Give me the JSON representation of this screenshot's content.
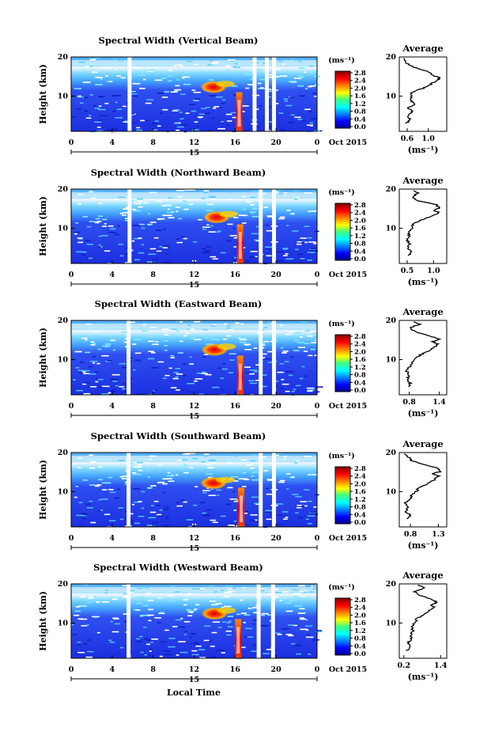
{
  "chart_data": [
    {
      "type": "heatmap",
      "title": "Spectral Width (Vertical Beam)",
      "ylabel": "Height (km)",
      "x_ticks": [
        "0",
        "4",
        "8",
        "12",
        "16",
        "20",
        "0"
      ],
      "xlim": [
        0,
        24
      ],
      "ylim": [
        1,
        20
      ],
      "y_ticks": [
        "20",
        "10"
      ],
      "date_marker": "15",
      "date_label": "Oct 2015",
      "colorbar": {
        "unit": "(ms⁻¹)",
        "ticks": [
          "2.8",
          "2.4",
          "2.0",
          "1.6",
          "1.2",
          "0.8",
          "0.4",
          "0.0"
        ]
      },
      "features": {
        "layer_top": 17.5,
        "hotspot": {
          "time": 13.9,
          "height": 12.3
        },
        "convection": {
          "time": 16.4
        },
        "gaps": [
          5.7,
          17.9,
          19.1,
          19.8
        ]
      },
      "profile": {
        "title": "Average",
        "xlabel": "(ms⁻¹)",
        "x_ticks": [
          "0.6",
          "1.0"
        ],
        "y_ticks": [
          "20",
          "10"
        ],
        "xlim": [
          0.45,
          1.35
        ],
        "points": [
          [
            0.58,
            3
          ],
          [
            0.65,
            4
          ],
          [
            0.6,
            5
          ],
          [
            0.7,
            6
          ],
          [
            0.62,
            7
          ],
          [
            0.75,
            8
          ],
          [
            0.66,
            9
          ],
          [
            0.7,
            10
          ],
          [
            0.68,
            11
          ],
          [
            0.9,
            12
          ],
          [
            1.05,
            13
          ],
          [
            1.15,
            14
          ],
          [
            1.22,
            14.6
          ],
          [
            1.1,
            15.2
          ],
          [
            1.05,
            16
          ],
          [
            0.8,
            17
          ],
          [
            0.62,
            18
          ],
          [
            0.56,
            19
          ],
          [
            0.5,
            19.8
          ]
        ]
      }
    },
    {
      "type": "heatmap",
      "title": "Spectral Width (Northward Beam)",
      "ylabel": "Height (km)",
      "x_ticks": [
        "0",
        "4",
        "8",
        "12",
        "16",
        "20",
        "0"
      ],
      "xlim": [
        0,
        24
      ],
      "ylim": [
        1,
        20
      ],
      "y_ticks": [
        "20",
        "10"
      ],
      "date_marker": "15",
      "date_label": "Oct 2015",
      "colorbar": {
        "unit": "(ms⁻¹)",
        "ticks": [
          "2.8",
          "2.4",
          "2.0",
          "1.6",
          "1.2",
          "0.8",
          "0.4",
          "0.0"
        ]
      },
      "features": {
        "layer_top": 17.5,
        "hotspot": {
          "time": 14.2,
          "height": 12.8
        },
        "convection": {
          "time": 16.5
        },
        "gaps": [
          5.7,
          18.5,
          19.8
        ]
      },
      "profile": {
        "title": "Average",
        "xlabel": "(ms⁻¹)",
        "x_ticks": [
          "0.5",
          "1.0"
        ],
        "y_ticks": [
          "20",
          "10"
        ],
        "xlim": [
          0.35,
          1.25
        ],
        "points": [
          [
            0.52,
            3
          ],
          [
            0.58,
            4
          ],
          [
            0.5,
            5
          ],
          [
            0.56,
            6
          ],
          [
            0.5,
            7
          ],
          [
            0.54,
            8
          ],
          [
            0.52,
            9
          ],
          [
            0.58,
            10
          ],
          [
            0.6,
            11
          ],
          [
            0.75,
            12
          ],
          [
            0.95,
            13
          ],
          [
            1.1,
            14
          ],
          [
            1.0,
            14.6
          ],
          [
            1.12,
            15.2
          ],
          [
            1.05,
            16
          ],
          [
            0.72,
            17
          ],
          [
            0.6,
            18
          ],
          [
            0.7,
            19
          ],
          [
            0.62,
            19.8
          ]
        ]
      }
    },
    {
      "type": "heatmap",
      "title": "Spectral Width (Eastward Beam)",
      "ylabel": "Height (km)",
      "x_ticks": [
        "0",
        "4",
        "8",
        "12",
        "16",
        "20",
        "0"
      ],
      "xlim": [
        0,
        24
      ],
      "ylim": [
        1,
        20
      ],
      "y_ticks": [
        "20",
        "10"
      ],
      "date_marker": "15",
      "date_label": "Oct 2015",
      "colorbar": {
        "unit": "(ms⁻¹)",
        "ticks": [
          "2.8",
          "2.4",
          "2.0",
          "1.6",
          "1.2",
          "0.8",
          "0.4",
          "0.0"
        ]
      },
      "features": {
        "layer_top": 17.5,
        "hotspot": {
          "time": 14.0,
          "height": 12.5
        },
        "convection": {
          "time": 16.5
        },
        "gaps": [
          5.6,
          18.5,
          19.8
        ]
      },
      "profile": {
        "title": "Average",
        "xlabel": "(ms⁻¹)",
        "x_ticks": [
          "0.8",
          "1.4"
        ],
        "y_ticks": [
          "20",
          "10"
        ],
        "xlim": [
          0.6,
          1.55
        ],
        "points": [
          [
            0.78,
            3
          ],
          [
            0.82,
            4
          ],
          [
            0.76,
            5
          ],
          [
            0.8,
            6
          ],
          [
            0.75,
            7
          ],
          [
            0.8,
            8
          ],
          [
            0.84,
            9
          ],
          [
            0.9,
            10
          ],
          [
            1.0,
            11
          ],
          [
            1.15,
            12
          ],
          [
            1.3,
            13
          ],
          [
            1.38,
            14
          ],
          [
            1.25,
            14.6
          ],
          [
            1.42,
            15.2
          ],
          [
            1.2,
            16
          ],
          [
            0.95,
            17
          ],
          [
            0.8,
            18
          ],
          [
            1.0,
            19
          ],
          [
            0.85,
            19.8
          ]
        ]
      }
    },
    {
      "type": "heatmap",
      "title": "Spectral Width (Southward Beam)",
      "ylabel": "Height (km)",
      "x_ticks": [
        "0",
        "4",
        "8",
        "12",
        "16",
        "20",
        "0"
      ],
      "xlim": [
        0,
        24
      ],
      "ylim": [
        1,
        20
      ],
      "y_ticks": [
        "20",
        "10"
      ],
      "date_marker": "15",
      "date_label": "Oct 2015",
      "colorbar": {
        "unit": "(ms⁻¹)",
        "ticks": [
          "2.8",
          "2.4",
          "2.0",
          "1.6",
          "1.2",
          "0.8",
          "0.4",
          "0.0"
        ]
      },
      "features": {
        "layer_top": 17.5,
        "hotspot": {
          "time": 13.9,
          "height": 12.2
        },
        "convection": {
          "time": 16.6
        },
        "gaps": [
          5.6,
          18.5,
          19.8
        ]
      },
      "profile": {
        "title": "Average",
        "xlabel": "(ms⁻¹)",
        "x_ticks": [
          "0.8",
          "1.3"
        ],
        "y_ticks": [
          "20",
          "10"
        ],
        "xlim": [
          0.6,
          1.45
        ],
        "points": [
          [
            0.72,
            3
          ],
          [
            0.8,
            4
          ],
          [
            0.7,
            5
          ],
          [
            0.76,
            6
          ],
          [
            0.7,
            7
          ],
          [
            0.78,
            8
          ],
          [
            0.82,
            9
          ],
          [
            0.9,
            10
          ],
          [
            0.95,
            11
          ],
          [
            1.1,
            12
          ],
          [
            1.22,
            13
          ],
          [
            1.3,
            14
          ],
          [
            1.2,
            14.6
          ],
          [
            1.35,
            15.2
          ],
          [
            1.28,
            16
          ],
          [
            1.0,
            17
          ],
          [
            0.82,
            18
          ],
          [
            0.76,
            19
          ],
          [
            0.7,
            19.8
          ]
        ]
      }
    },
    {
      "type": "heatmap",
      "title": "Spectral Width (Westward Beam)",
      "ylabel": "Height (km)",
      "x_ticks": [
        "0",
        "4",
        "8",
        "12",
        "16",
        "20",
        "0"
      ],
      "xlim": [
        0,
        24
      ],
      "ylim": [
        1,
        20
      ],
      "y_ticks": [
        "20",
        "10"
      ],
      "date_marker": "15",
      "date_label": "Oct 2015",
      "colorbar": {
        "unit": "(ms⁻¹)",
        "ticks": [
          "2.8",
          "2.4",
          "2.0",
          "1.6",
          "1.2",
          "0.8",
          "0.4",
          "0.0"
        ]
      },
      "features": {
        "layer_top": 17.5,
        "hotspot": {
          "time": 14.0,
          "height": 12.4
        },
        "convection": {
          "time": 16.3
        },
        "gaps": [
          5.6,
          18.3,
          19.7
        ]
      },
      "profile": {
        "title": "Average",
        "xlabel": "(ms⁻¹)",
        "x_ticks": [
          "0.2",
          "1.4"
        ],
        "y_ticks": [
          "20",
          "10"
        ],
        "xlim": [
          0.05,
          1.6
        ],
        "points": [
          [
            0.3,
            3
          ],
          [
            0.4,
            4
          ],
          [
            0.35,
            5
          ],
          [
            0.45,
            6
          ],
          [
            0.4,
            7
          ],
          [
            0.5,
            8
          ],
          [
            0.46,
            9
          ],
          [
            0.55,
            10
          ],
          [
            0.62,
            11
          ],
          [
            0.8,
            12
          ],
          [
            1.0,
            13
          ],
          [
            1.2,
            14
          ],
          [
            1.05,
            14.6
          ],
          [
            1.3,
            15.2
          ],
          [
            1.1,
            16
          ],
          [
            0.75,
            17
          ],
          [
            0.55,
            18
          ],
          [
            0.9,
            19
          ],
          [
            0.6,
            19.8
          ]
        ]
      }
    }
  ],
  "xlabel": "Local Time"
}
